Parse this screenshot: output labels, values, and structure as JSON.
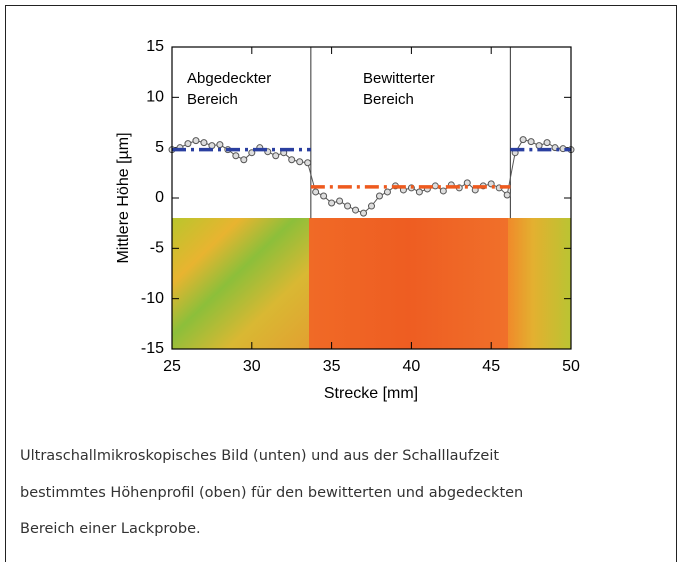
{
  "chart_data": {
    "type": "line",
    "xlabel": "Strecke [mm]",
    "ylabel": "Mittlere Höhe [µm]",
    "xlim": [
      25,
      50
    ],
    "xticks": [
      25,
      30,
      35,
      40,
      45,
      50
    ],
    "ylim": [
      -15,
      15
    ],
    "yticks": [
      -15,
      -10,
      -5,
      0,
      5,
      10,
      15
    ],
    "annotations": [
      [
        "Abgedeckter",
        "Bereich"
      ],
      [
        "Bewitterter",
        "Bereich"
      ]
    ],
    "vlines": [
      33.7,
      46.2
    ],
    "series": [
      {
        "color": "#555555",
        "markers": true,
        "x": [
          25,
          25.5,
          26,
          26.5,
          27,
          27.5,
          28,
          28.5,
          29,
          29.5,
          30,
          30.5,
          31,
          31.5,
          32,
          32.5,
          33,
          33.5,
          34,
          34.5,
          35,
          35.5,
          36,
          36.5,
          37,
          37.5,
          38,
          38.5,
          39,
          39.5,
          40,
          40.5,
          41,
          41.5,
          42,
          42.5,
          43,
          43.5,
          44,
          44.5,
          45,
          45.5,
          46,
          46.5,
          47,
          47.5,
          48,
          48.5,
          49,
          49.5,
          50
        ],
        "values": [
          4.8,
          5.0,
          5.4,
          5.7,
          5.5,
          5.2,
          5.3,
          4.8,
          4.2,
          3.8,
          4.5,
          5.0,
          4.6,
          4.2,
          4.5,
          3.8,
          3.6,
          3.5,
          0.6,
          0.2,
          -0.5,
          -0.3,
          -0.8,
          -1.2,
          -1.5,
          -0.8,
          0.2,
          0.6,
          1.2,
          0.8,
          1.0,
          0.6,
          0.9,
          1.2,
          0.7,
          1.3,
          1.0,
          1.5,
          0.8,
          1.2,
          1.4,
          1.0,
          0.3,
          4.5,
          5.8,
          5.6,
          5.2,
          5.5,
          5.0,
          4.9,
          4.8
        ]
      },
      {
        "color": "#2a3fa0",
        "markers": false,
        "x": [
          25,
          33.7
        ],
        "values": [
          4.8,
          4.8
        ]
      },
      {
        "color": "#2a3fa0",
        "markers": false,
        "x": [
          46.2,
          50
        ],
        "values": [
          4.8,
          4.8
        ]
      },
      {
        "color": "#ee5a1e",
        "markers": false,
        "x": [
          33.7,
          46.2
        ],
        "values": [
          1.1,
          1.1
        ]
      }
    ]
  },
  "caption": [
    "Ultraschallmikroskopisches Bild (unten) und aus der Schalllaufzeit",
    "bestimmtes Höhenprofil (oben) für den bewitterten und abgedeckten",
    "Bereich einer Lackprobe."
  ]
}
